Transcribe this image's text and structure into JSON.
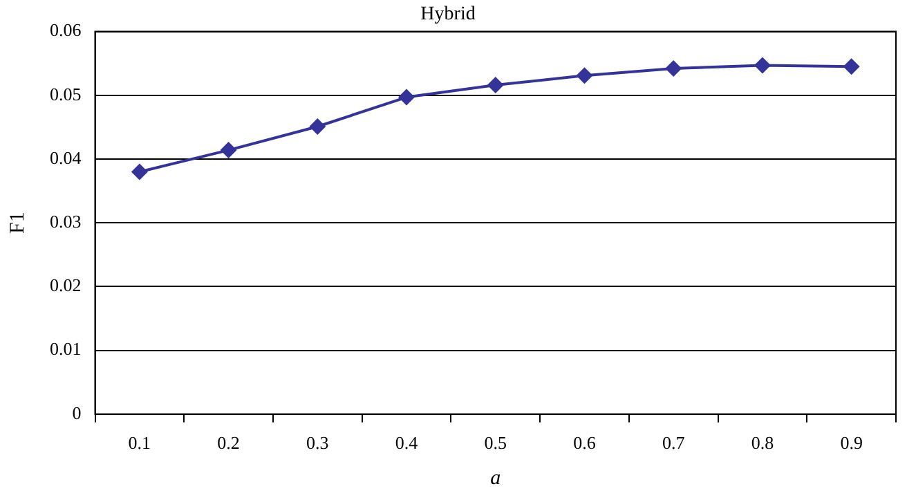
{
  "chart_data": {
    "type": "line",
    "title": "Hybrid",
    "xlabel": "a",
    "ylabel": "F1",
    "categories": [
      "0.1",
      "0.2",
      "0.3",
      "0.4",
      "0.5",
      "0.6",
      "0.7",
      "0.8",
      "0.9"
    ],
    "series": [
      {
        "color": "#333399",
        "values": [
          0.038,
          0.0414,
          0.0451,
          0.0497,
          0.0516,
          0.0531,
          0.0542,
          0.0547,
          0.0545
        ]
      }
    ],
    "ylim": [
      0,
      0.06
    ],
    "yticks": [
      0,
      0.01,
      0.02,
      0.03,
      0.04,
      0.05,
      0.06
    ],
    "grid": "y",
    "legend": false,
    "marker": "diamond",
    "line_style": "solid"
  }
}
